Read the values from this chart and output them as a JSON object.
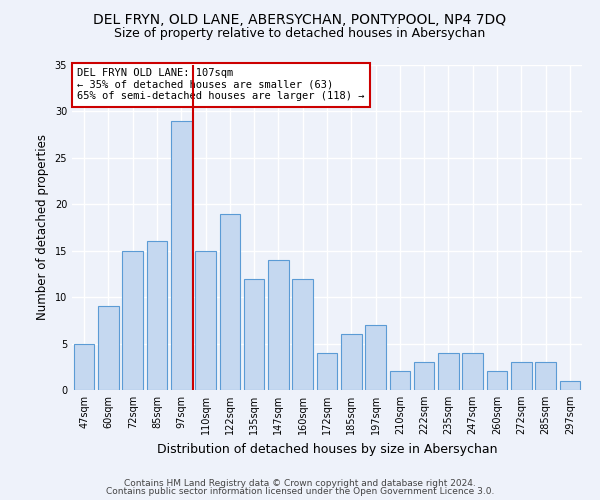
{
  "title": "DEL FRYN, OLD LANE, ABERSYCHAN, PONTYPOOL, NP4 7DQ",
  "subtitle": "Size of property relative to detached houses in Abersychan",
  "xlabel": "Distribution of detached houses by size in Abersychan",
  "ylabel": "Number of detached properties",
  "bar_labels": [
    "47sqm",
    "60sqm",
    "72sqm",
    "85sqm",
    "97sqm",
    "110sqm",
    "122sqm",
    "135sqm",
    "147sqm",
    "160sqm",
    "172sqm",
    "185sqm",
    "197sqm",
    "210sqm",
    "222sqm",
    "235sqm",
    "247sqm",
    "260sqm",
    "272sqm",
    "285sqm",
    "297sqm"
  ],
  "bar_heights": [
    5,
    9,
    15,
    16,
    29,
    15,
    19,
    12,
    14,
    12,
    4,
    6,
    7,
    2,
    3,
    4,
    4,
    2,
    3,
    3,
    1
  ],
  "bar_color": "#c5d8f0",
  "bar_edgecolor": "#5b9bd5",
  "vline_color": "#cc0000",
  "annotation_title": "DEL FRYN OLD LANE: 107sqm",
  "annotation_line1": "← 35% of detached houses are smaller (63)",
  "annotation_line2": "65% of semi-detached houses are larger (118) →",
  "annotation_box_color": "#cc0000",
  "ylim": [
    0,
    35
  ],
  "yticks": [
    0,
    5,
    10,
    15,
    20,
    25,
    30,
    35
  ],
  "footer1": "Contains HM Land Registry data © Crown copyright and database right 2024.",
  "footer2": "Contains public sector information licensed under the Open Government Licence 3.0.",
  "background_color": "#eef2fa",
  "grid_color": "#ffffff",
  "title_fontsize": 10,
  "subtitle_fontsize": 9,
  "xlabel_fontsize": 9,
  "ylabel_fontsize": 8.5,
  "tick_fontsize": 7,
  "annotation_fontsize": 7.5,
  "footer_fontsize": 6.5
}
